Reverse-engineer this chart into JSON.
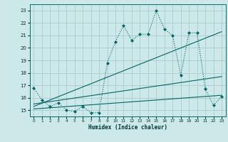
{
  "bg_color": "#cce8e8",
  "grid_color": "#aacccc",
  "line_color": "#006666",
  "xlabel": "Humidex (Indice chaleur)",
  "xlim": [
    -0.5,
    23.5
  ],
  "ylim": [
    14.5,
    23.5
  ],
  "yticks": [
    15,
    16,
    17,
    18,
    19,
    20,
    21,
    22,
    23
  ],
  "xticks": [
    0,
    1,
    2,
    3,
    4,
    5,
    6,
    7,
    8,
    9,
    10,
    11,
    12,
    13,
    14,
    15,
    16,
    17,
    18,
    19,
    20,
    21,
    22,
    23
  ],
  "series1_x": [
    0,
    1,
    2,
    3,
    4,
    5,
    6,
    7,
    8,
    9,
    10,
    11,
    12,
    13,
    14,
    15,
    16,
    17,
    18,
    19,
    20,
    21,
    22,
    23
  ],
  "series1_y": [
    16.8,
    15.8,
    15.3,
    15.6,
    15.0,
    14.9,
    15.3,
    14.8,
    14.8,
    18.8,
    20.5,
    21.8,
    20.6,
    21.1,
    21.1,
    23.0,
    21.5,
    21.0,
    17.8,
    21.2,
    21.2,
    16.7,
    15.4,
    16.1
  ],
  "series2_x": [
    0,
    23
  ],
  "series2_y": [
    15.3,
    21.3
  ],
  "series3_x": [
    0,
    23
  ],
  "series3_y": [
    15.1,
    16.2
  ],
  "series4_x": [
    0,
    23
  ],
  "series4_y": [
    15.5,
    17.7
  ]
}
